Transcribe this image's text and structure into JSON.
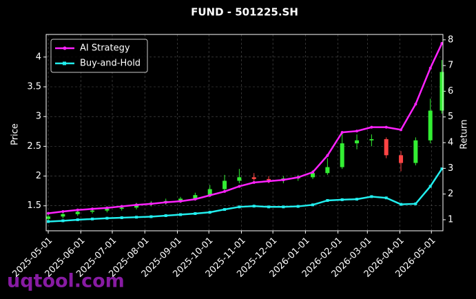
{
  "chart_data": {
    "type": "candlestick",
    "title": "FUND - 501225.SH",
    "y_label": "Price",
    "y2_label": "Return",
    "watermark": "uqtool.com",
    "x": [
      "2025-05-01",
      "2025-05-15",
      "2025-05-29",
      "2025-06-12",
      "2025-06-26",
      "2025-07-10",
      "2025-07-24",
      "2025-08-07",
      "2025-08-21",
      "2025-09-04",
      "2025-09-18",
      "2025-10-02",
      "2025-10-16",
      "2025-10-30",
      "2025-11-13",
      "2025-11-27",
      "2025-12-11",
      "2025-12-25",
      "2026-01-08",
      "2026-01-22",
      "2026-02-05",
      "2026-02-19",
      "2026-03-05",
      "2026-03-19",
      "2026-04-02",
      "2026-04-16",
      "2026-04-30",
      "2026-05-11"
    ],
    "open": [
      1.28,
      1.32,
      1.36,
      1.4,
      1.42,
      1.45,
      1.47,
      1.52,
      1.55,
      1.58,
      1.62,
      1.68,
      1.78,
      1.92,
      1.98,
      1.95,
      1.93,
      1.96,
      1.98,
      2.05,
      2.15,
      2.55,
      2.6,
      2.62,
      2.35,
      2.22,
      2.6,
      3.1
    ],
    "high": [
      1.35,
      1.39,
      1.43,
      1.45,
      1.48,
      1.5,
      1.55,
      1.58,
      1.62,
      1.65,
      1.72,
      1.85,
      2.02,
      2.12,
      2.05,
      2.0,
      2.0,
      2.02,
      2.1,
      2.3,
      2.72,
      2.7,
      2.7,
      2.65,
      2.42,
      2.65,
      3.3,
      3.95
    ],
    "low": [
      1.24,
      1.29,
      1.33,
      1.37,
      1.39,
      1.42,
      1.44,
      1.49,
      1.52,
      1.55,
      1.59,
      1.65,
      1.75,
      1.88,
      1.92,
      1.88,
      1.88,
      1.92,
      1.95,
      2.02,
      2.12,
      2.45,
      2.5,
      2.3,
      2.08,
      2.18,
      2.55,
      3.05
    ],
    "close": [
      1.32,
      1.36,
      1.4,
      1.42,
      1.45,
      1.47,
      1.52,
      1.55,
      1.58,
      1.62,
      1.68,
      1.78,
      1.92,
      1.98,
      1.95,
      1.93,
      1.96,
      1.98,
      2.05,
      2.15,
      2.55,
      2.6,
      2.62,
      2.35,
      2.22,
      2.6,
      3.1,
      3.75
    ],
    "up_color": "#33ee33",
    "down_color": "#ff4444",
    "series": [
      {
        "name": "AI Strategy",
        "color": "#ff22ff",
        "axis": "y2",
        "marker": "circle",
        "values": [
          1.25,
          1.32,
          1.38,
          1.42,
          1.46,
          1.52,
          1.58,
          1.62,
          1.68,
          1.72,
          1.8,
          1.95,
          2.1,
          2.3,
          2.45,
          2.5,
          2.55,
          2.65,
          2.85,
          3.5,
          4.4,
          4.45,
          4.6,
          4.6,
          4.5,
          5.5,
          6.9,
          7.86
        ]
      },
      {
        "name": "Buy-and-Hold",
        "color": "#22eeee",
        "axis": "y2",
        "marker": "square",
        "values": [
          0.93,
          0.96,
          1.0,
          1.03,
          1.06,
          1.08,
          1.1,
          1.12,
          1.16,
          1.2,
          1.24,
          1.29,
          1.4,
          1.5,
          1.53,
          1.5,
          1.5,
          1.52,
          1.58,
          1.75,
          1.78,
          1.8,
          1.9,
          1.85,
          1.6,
          1.62,
          2.3,
          2.98
        ]
      }
    ],
    "xlim": [
      "2025-04-29",
      "2026-05-12"
    ],
    "xticks": [
      "2025-05-01",
      "2025-06-01",
      "2025-07-01",
      "2025-08-01",
      "2025-09-01",
      "2025-10-01",
      "2025-11-01",
      "2025-12-01",
      "2026-01-01",
      "2026-02-01",
      "2026-03-01",
      "2026-04-01",
      "2026-05-01"
    ],
    "ylim": [
      1.08,
      4.38
    ],
    "yticks": [
      1.5,
      2.0,
      2.5,
      3.0,
      3.5,
      4.0
    ],
    "y2lim": [
      0.57,
      8.21
    ],
    "y2ticks": [
      1,
      2,
      3,
      4,
      5,
      6,
      7,
      8
    ],
    "grid": true,
    "legend": "upper-left"
  }
}
